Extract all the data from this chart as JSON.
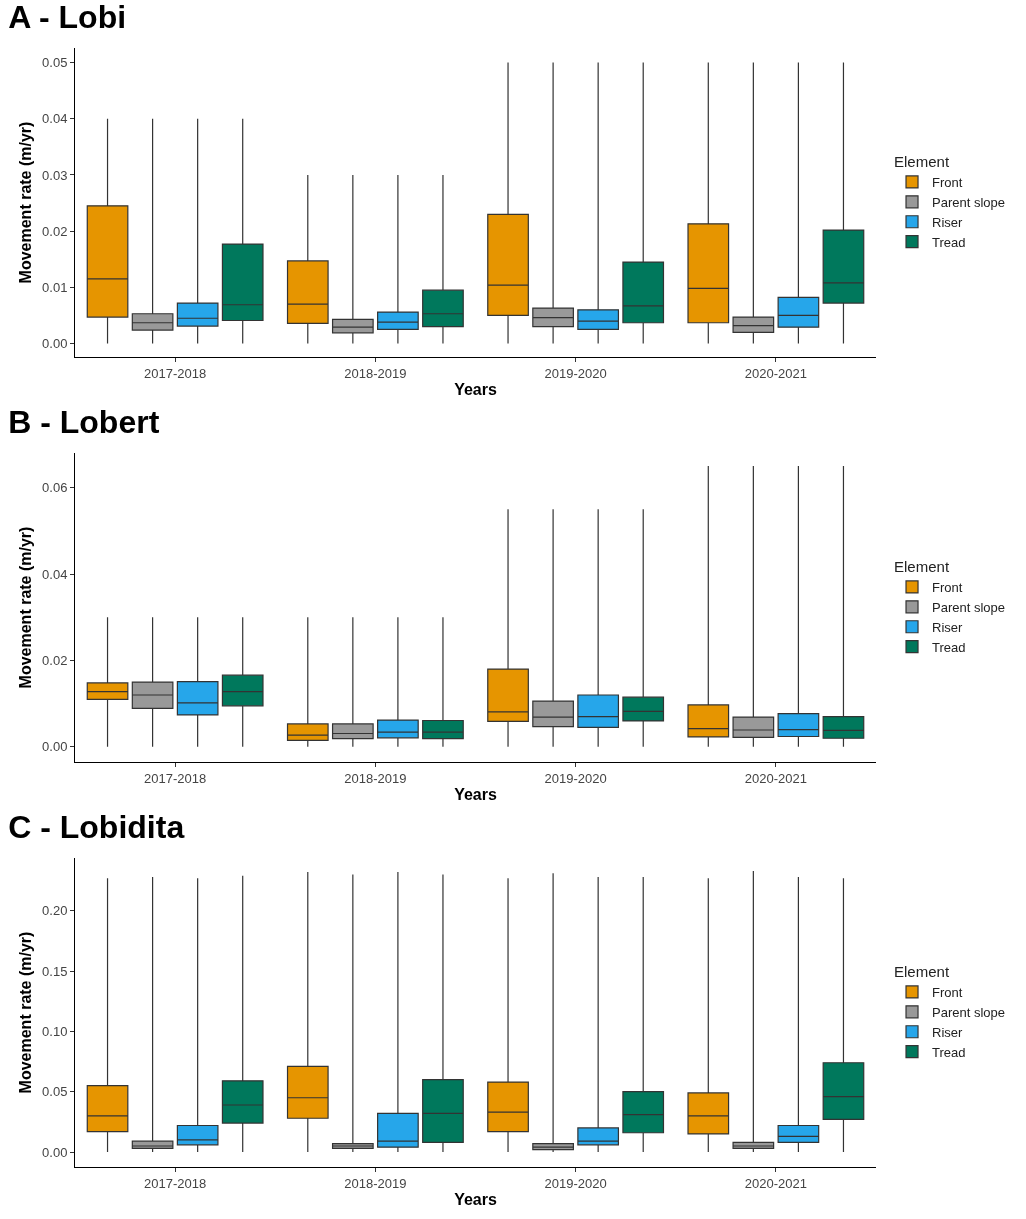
{
  "chart_data": [
    {
      "type": "box",
      "title": "A - Lobi",
      "xlabel": "Years",
      "ylabel": "Movement rate (m/yr)",
      "legend_title": "Element",
      "legend": "right",
      "grid": false,
      "categories": [
        "2017-2018",
        "2018-2019",
        "2019-2020",
        "2020-2021"
      ],
      "ylim": [
        -0.0024,
        0.0526
      ],
      "yticks": [
        {
          "value": 0,
          "label": "0.00"
        },
        0.01,
        0.02,
        0.03,
        0.04,
        0.05
      ],
      "series": [
        {
          "name": "Front",
          "color": "#e69500",
          "boxes": [
            {
              "low": 0,
              "q1": 0.0047,
              "median": 0.0115,
              "q3": 0.0245,
              "high": 0.04
            },
            {
              "low": 0,
              "q1": 0.0036,
              "median": 0.007,
              "q3": 0.0147,
              "high": 0.03
            },
            {
              "low": 0,
              "q1": 0.005,
              "median": 0.0104,
              "q3": 0.023,
              "high": 0.05
            },
            {
              "low": 0,
              "q1": 0.0037,
              "median": 0.0098,
              "q3": 0.0213,
              "high": 0.05
            }
          ]
        },
        {
          "name": "Parent slope",
          "color": "#999999",
          "boxes": [
            {
              "low": 0,
              "q1": 0.0024,
              "median": 0.0037,
              "q3": 0.0053,
              "high": 0.04
            },
            {
              "low": 0,
              "q1": 0.0019,
              "median": 0.0029,
              "q3": 0.0043,
              "high": 0.03
            },
            {
              "low": 0,
              "q1": 0.003,
              "median": 0.0046,
              "q3": 0.0063,
              "high": 0.05
            },
            {
              "low": 0,
              "q1": 0.002,
              "median": 0.0032,
              "q3": 0.0047,
              "high": 0.05
            }
          ]
        },
        {
          "name": "Riser",
          "color": "#26a6ea",
          "boxes": [
            {
              "low": 0,
              "q1": 0.0031,
              "median": 0.0045,
              "q3": 0.0072,
              "high": 0.04
            },
            {
              "low": 0,
              "q1": 0.0025,
              "median": 0.0038,
              "q3": 0.0056,
              "high": 0.03
            },
            {
              "low": 0,
              "q1": 0.0025,
              "median": 0.004,
              "q3": 0.006,
              "high": 0.05
            },
            {
              "low": 0,
              "q1": 0.0029,
              "median": 0.005,
              "q3": 0.0082,
              "high": 0.05
            }
          ]
        },
        {
          "name": "Tread",
          "color": "#00785c",
          "boxes": [
            {
              "low": 0,
              "q1": 0.0041,
              "median": 0.0069,
              "q3": 0.0177,
              "high": 0.04
            },
            {
              "low": 0,
              "q1": 0.003,
              "median": 0.0053,
              "q3": 0.0095,
              "high": 0.03
            },
            {
              "low": 0,
              "q1": 0.0037,
              "median": 0.0067,
              "q3": 0.0145,
              "high": 0.05
            },
            {
              "low": 0,
              "q1": 0.0072,
              "median": 0.0108,
              "q3": 0.0202,
              "high": 0.05
            }
          ]
        }
      ]
    },
    {
      "type": "box",
      "title": "B - Lobert",
      "xlabel": "Years",
      "ylabel": "Movement rate (m/yr)",
      "legend_title": "Element",
      "legend": "right",
      "grid": false,
      "categories": [
        "2017-2018",
        "2018-2019",
        "2019-2020",
        "2020-2021"
      ],
      "ylim": [
        -0.0035,
        0.068
      ],
      "yticks": [
        {
          "value": 0,
          "label": "0.00"
        },
        0.02,
        0.04,
        0.06
      ],
      "series": [
        {
          "name": "Front",
          "color": "#e69500",
          "boxes": [
            {
              "low": 0,
              "q1": 0.011,
              "median": 0.0128,
              "q3": 0.0148,
              "high": 0.03
            },
            {
              "low": 0,
              "q1": 0.0015,
              "median": 0.0027,
              "q3": 0.0053,
              "high": 0.03
            },
            {
              "low": 0,
              "q1": 0.0059,
              "median": 0.0081,
              "q3": 0.018,
              "high": 0.055
            },
            {
              "low": 0,
              "q1": 0.0023,
              "median": 0.0042,
              "q3": 0.0097,
              "high": 0.065
            }
          ]
        },
        {
          "name": "Parent slope",
          "color": "#999999",
          "boxes": [
            {
              "low": 0,
              "q1": 0.0089,
              "median": 0.012,
              "q3": 0.015,
              "high": 0.03
            },
            {
              "low": 0,
              "q1": 0.0019,
              "median": 0.0031,
              "q3": 0.0053,
              "high": 0.03
            },
            {
              "low": 0,
              "q1": 0.0047,
              "median": 0.0069,
              "q3": 0.0106,
              "high": 0.055
            },
            {
              "low": 0,
              "q1": 0.0022,
              "median": 0.0039,
              "q3": 0.0069,
              "high": 0.065
            }
          ]
        },
        {
          "name": "Riser",
          "color": "#26a6ea",
          "boxes": [
            {
              "low": 0,
              "q1": 0.0074,
              "median": 0.0102,
              "q3": 0.0151,
              "high": 0.03
            },
            {
              "low": 0,
              "q1": 0.0021,
              "median": 0.0034,
              "q3": 0.0062,
              "high": 0.03
            },
            {
              "low": 0,
              "q1": 0.0045,
              "median": 0.007,
              "q3": 0.012,
              "high": 0.055
            },
            {
              "low": 0,
              "q1": 0.0024,
              "median": 0.004,
              "q3": 0.0077,
              "high": 0.065
            }
          ]
        },
        {
          "name": "Tread",
          "color": "#00785c",
          "boxes": [
            {
              "low": 0,
              "q1": 0.0095,
              "median": 0.0128,
              "q3": 0.0166,
              "high": 0.03
            },
            {
              "low": 0,
              "q1": 0.0019,
              "median": 0.0034,
              "q3": 0.0061,
              "high": 0.03
            },
            {
              "low": 0,
              "q1": 0.006,
              "median": 0.0082,
              "q3": 0.0115,
              "high": 0.055
            },
            {
              "low": 0,
              "q1": 0.002,
              "median": 0.0038,
              "q3": 0.007,
              "high": 0.065
            }
          ]
        }
      ]
    },
    {
      "type": "box",
      "title": "C - Lobidita",
      "xlabel": "Years",
      "ylabel": "Movement rate (m/yr)",
      "legend_title": "Element",
      "legend": "right",
      "grid": false,
      "categories": [
        "2017-2018",
        "2018-2019",
        "2019-2020",
        "2020-2021"
      ],
      "ylim": [
        -0.0124,
        0.2437
      ],
      "yticks": [
        {
          "value": 0,
          "label": "0.00"
        },
        0.05,
        {
          "value": 0.1,
          "label": "0.10"
        },
        0.15,
        {
          "value": 0.2,
          "label": "0.20"
        }
      ],
      "series": [
        {
          "name": "Front",
          "color": "#e69500",
          "boxes": [
            {
              "low": 0,
              "q1": 0.017,
              "median": 0.03,
              "q3": 0.055,
              "high": 0.227
            },
            {
              "low": 0,
              "q1": 0.028,
              "median": 0.045,
              "q3": 0.071,
              "high": 0.232
            },
            {
              "low": 0,
              "q1": 0.017,
              "median": 0.033,
              "q3": 0.058,
              "high": 0.227
            },
            {
              "low": 0,
              "q1": 0.015,
              "median": 0.03,
              "q3": 0.049,
              "high": 0.227
            }
          ]
        },
        {
          "name": "Parent slope",
          "color": "#999999",
          "boxes": [
            {
              "low": 0,
              "q1": 0.003,
              "median": 0.005,
              "q3": 0.009,
              "high": 0.228
            },
            {
              "low": 0,
              "q1": 0.003,
              "median": 0.005,
              "q3": 0.007,
              "high": 0.23
            },
            {
              "low": 0,
              "q1": 0.002,
              "median": 0.004,
              "q3": 0.007,
              "high": 0.231
            },
            {
              "low": 0,
              "q1": 0.003,
              "median": 0.005,
              "q3": 0.008,
              "high": 0.233
            }
          ]
        },
        {
          "name": "Riser",
          "color": "#26a6ea",
          "boxes": [
            {
              "low": 0,
              "q1": 0.006,
              "median": 0.01,
              "q3": 0.022,
              "high": 0.227
            },
            {
              "low": 0,
              "q1": 0.004,
              "median": 0.009,
              "q3": 0.032,
              "high": 0.232
            },
            {
              "low": 0,
              "q1": 0.006,
              "median": 0.009,
              "q3": 0.02,
              "high": 0.228
            },
            {
              "low": 0,
              "q1": 0.008,
              "median": 0.013,
              "q3": 0.022,
              "high": 0.228
            }
          ]
        },
        {
          "name": "Tread",
          "color": "#00785c",
          "boxes": [
            {
              "low": 0,
              "q1": 0.024,
              "median": 0.039,
              "q3": 0.059,
              "high": 0.229
            },
            {
              "low": 0,
              "q1": 0.008,
              "median": 0.032,
              "q3": 0.06,
              "high": 0.23
            },
            {
              "low": 0,
              "q1": 0.016,
              "median": 0.031,
              "q3": 0.05,
              "high": 0.228
            },
            {
              "low": 0,
              "q1": 0.027,
              "median": 0.046,
              "q3": 0.074,
              "high": 0.227
            }
          ]
        }
      ]
    }
  ]
}
